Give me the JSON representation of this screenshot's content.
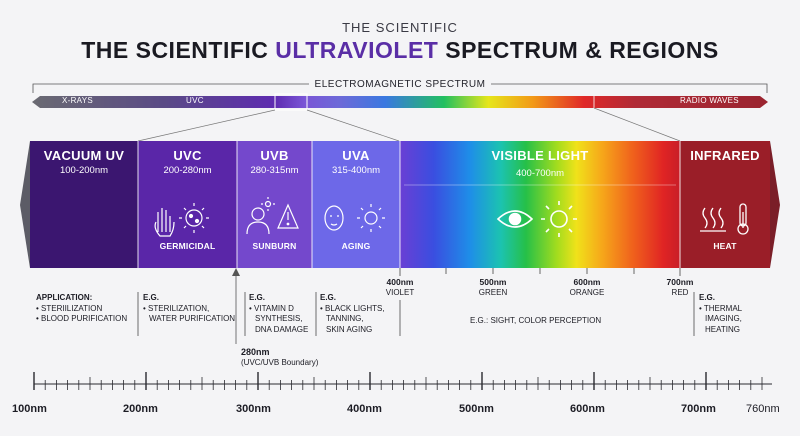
{
  "header": {
    "supertitle": "THE SCIENTIFIC",
    "title_prefix": "THE SCIENTIFIC",
    "title_highlight": "ULTRAVIOLET",
    "title_suffix": "SPECTRUM & REGIONS",
    "em_label": "ELECTROMAGNETIC SPECTRUM"
  },
  "em_bar": {
    "labels": [
      "X-RAYS",
      "UVC",
      "RADIO WAVES"
    ]
  },
  "regions": [
    {
      "name": "VACUUM UV",
      "range": "100-200nm",
      "color": "#3b1670"
    },
    {
      "name": "UVC",
      "range": "200-280nm",
      "color": "#5a26a8",
      "icon_label": "GERMICIDAL"
    },
    {
      "name": "UVB",
      "range": "280-315nm",
      "color": "#7448cc",
      "icon_label": "SUNBURN"
    },
    {
      "name": "UVA",
      "range": "315-400nm",
      "color": "#6d68e8",
      "icon_label": "AGING"
    },
    {
      "name": "VISIBLE LIGHT",
      "range": "400-700nm"
    },
    {
      "name": "INFRARED",
      "color": "#9a1e28",
      "icon_label": "HEAT"
    }
  ],
  "boundaries": [
    {
      "nm": "400nm",
      "name": "VIOLET"
    },
    {
      "nm": "500nm",
      "name": "GREEN"
    },
    {
      "nm": "600nm",
      "name": "ORANGE"
    },
    {
      "nm": "700nm",
      "name": "RED"
    }
  ],
  "annotations": {
    "vacuum": {
      "heading": "APPLICATION:",
      "lines": [
        "• STERIILIZATION",
        "• BLOOD PURIFICATION"
      ]
    },
    "uvc": {
      "heading": "E.G.",
      "lines": [
        "• STERILIZATION,",
        "WATER PURIFICATION"
      ]
    },
    "uvb": {
      "heading": "E.G.",
      "lines": [
        "• VITAMIN D",
        "SYNTHESIS,",
        "DNA DAMAGE"
      ]
    },
    "uva": {
      "heading": "E.G.",
      "lines": [
        "• BLACK LIGHTS,",
        "TANNING,",
        "SKIN AGING"
      ]
    },
    "visible": {
      "text": "E.G.: SIGHT, COLOR PERCEPTION"
    },
    "infrared": {
      "heading": "E.G.",
      "lines": [
        "• THERMAL",
        "IMAGING,",
        "HEATING"
      ]
    },
    "boundary_280": {
      "value": "280nm",
      "note": "(UVC/UVB Boundary)"
    }
  },
  "axis": {
    "labels": [
      "100nm",
      "200nm",
      "300nm",
      "400nm",
      "500nm",
      "600nm",
      "700nm"
    ],
    "end_label": "760nm"
  },
  "colors": {
    "title_highlight": "#5a2ea6",
    "text": "#1c1c24"
  }
}
